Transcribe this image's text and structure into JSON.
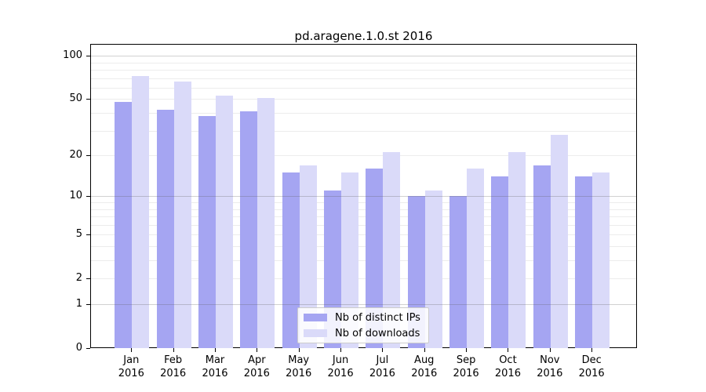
{
  "title": "pd.aragene.1.0.st 2016",
  "chart_data": {
    "type": "bar",
    "title": "pd.aragene.1.0.st 2016",
    "categories": [
      "Jan",
      "Feb",
      "Mar",
      "Apr",
      "May",
      "Jun",
      "Jul",
      "Aug",
      "Sep",
      "Oct",
      "Nov",
      "Dec"
    ],
    "year": "2016",
    "series": [
      {
        "name": "Nb of distinct IPs",
        "color": "#a5a5f2",
        "values": [
          48,
          42,
          38,
          41,
          15,
          11,
          16,
          10,
          10,
          14,
          17,
          14
        ]
      },
      {
        "name": "Nb of downloads",
        "color": "#dadaf9",
        "values": [
          72,
          66,
          53,
          51,
          17,
          15,
          21,
          11,
          16,
          21,
          28,
          15
        ]
      }
    ],
    "xlabel": "",
    "ylabel": "",
    "yscale": "log10(value+1)",
    "ylim": [
      0,
      121
    ],
    "yticks": [
      0,
      1,
      2,
      5,
      10,
      20,
      50,
      100
    ],
    "major_gridlines": [
      1,
      10,
      100
    ],
    "minor_gridlines": [
      2,
      3,
      4,
      5,
      6,
      7,
      8,
      9,
      20,
      30,
      40,
      50,
      60,
      70,
      80,
      90
    ],
    "grid": true,
    "legend_position": "lower-center"
  },
  "legend": {
    "items": [
      {
        "label": "Nb of distinct IPs"
      },
      {
        "label": "Nb of downloads"
      }
    ]
  },
  "colors": {
    "bar_distinct_ips": "#a5a5f2",
    "bar_downloads": "#dadaf9",
    "axis": "#000000",
    "gridline_major": "#cfcfcf",
    "gridline_minor": "#ececec",
    "legend_border": "#cccccc",
    "background": "#ffffff"
  }
}
